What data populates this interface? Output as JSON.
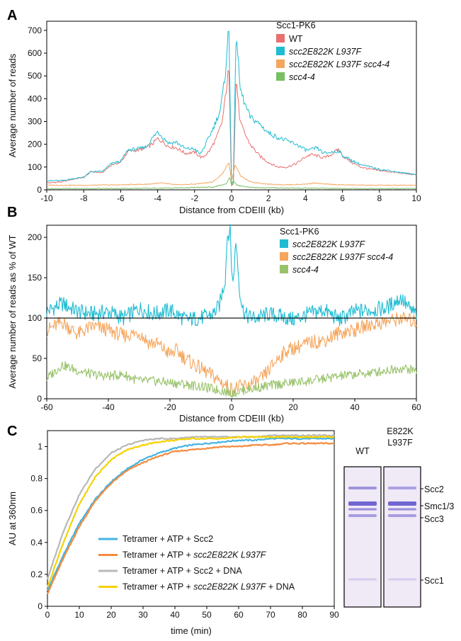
{
  "panels": {
    "a": "A",
    "b": "B",
    "c": "C"
  },
  "chart_data": [
    {
      "type": "line",
      "panel": "A",
      "xlabel": "Distance from CDEIII (kb)",
      "ylabel": "Average number of reads",
      "xlim": [
        -10,
        10
      ],
      "ylim": [
        0,
        740
      ],
      "xticks": [
        "-10",
        "-8",
        "-6",
        "-4",
        "-2",
        "0",
        "2",
        "4",
        "6",
        "8",
        "10"
      ],
      "yticks": [
        "0",
        "100",
        "200",
        "300",
        "400",
        "500",
        "600",
        "700"
      ],
      "legend_title": "Scc1-PK6",
      "legend": [
        "WT",
        "scc2E822K L937F",
        "scc2E822K L937F scc4-4",
        "scc4-4"
      ],
      "series": [
        {
          "name": "WT",
          "color": "#e8706e",
          "x": [
            -10,
            -9.2,
            -8.5,
            -8,
            -7.6,
            -7,
            -6.5,
            -6,
            -5.6,
            -5,
            -4.6,
            -4.3,
            -4,
            -3.7,
            -3.4,
            -3,
            -2.5,
            -2,
            -1.6,
            -1.2,
            -0.8,
            -0.5,
            -0.3,
            -0.15,
            0,
            0.1,
            0.25,
            0.45,
            0.7,
            1,
            1.5,
            2,
            2.5,
            3,
            3.5,
            4,
            4.3,
            4.6,
            5,
            5.4,
            5.8,
            6,
            6.5,
            7,
            7.5,
            8,
            8.5,
            9,
            9.5,
            10
          ],
          "y": [
            30,
            35,
            48,
            55,
            80,
            75,
            110,
            120,
            170,
            175,
            185,
            200,
            225,
            210,
            190,
            185,
            160,
            165,
            140,
            170,
            230,
            300,
            430,
            535,
            20,
            30,
            500,
            300,
            250,
            200,
            150,
            120,
            100,
            100,
            115,
            145,
            155,
            150,
            140,
            155,
            180,
            150,
            120,
            100,
            90,
            85,
            80,
            75,
            70,
            65
          ]
        },
        {
          "name": "scc2E822K L937F",
          "color": "#1fbcd2",
          "x": [
            -10,
            -9.2,
            -8.5,
            -8,
            -7.6,
            -7,
            -6.5,
            -6,
            -5.6,
            -5,
            -4.6,
            -4.3,
            -4,
            -3.7,
            -3.4,
            -3,
            -2.5,
            -2,
            -1.7,
            -1.4,
            -1,
            -0.6,
            -0.35,
            -0.15,
            0,
            0.1,
            0.25,
            0.45,
            0.7,
            1,
            1.5,
            2,
            2.5,
            3,
            3.5,
            4,
            4.3,
            4.6,
            5,
            5.4,
            5.8,
            6,
            6.5,
            7,
            7.5,
            8,
            8.5,
            9,
            9.5,
            10
          ],
          "y": [
            40,
            40,
            50,
            55,
            80,
            80,
            115,
            125,
            175,
            180,
            190,
            225,
            255,
            230,
            205,
            210,
            180,
            180,
            155,
            200,
            270,
            350,
            500,
            720,
            25,
            40,
            715,
            450,
            380,
            320,
            290,
            250,
            230,
            215,
            200,
            175,
            175,
            185,
            160,
            165,
            170,
            150,
            130,
            110,
            100,
            90,
            85,
            78,
            72,
            68
          ]
        },
        {
          "name": "scc2E822K L937F scc4-4",
          "color": "#f5a55c",
          "x": [
            -10,
            -8,
            -6,
            -4.5,
            -3.8,
            -3,
            -2,
            -1,
            -0.5,
            -0.15,
            0,
            0.2,
            0.5,
            1,
            2,
            3,
            4,
            4.5,
            5,
            6,
            8,
            10
          ],
          "y": [
            20,
            20,
            22,
            25,
            30,
            22,
            25,
            35,
            70,
            120,
            40,
            110,
            60,
            35,
            25,
            22,
            25,
            30,
            25,
            22,
            20,
            20
          ]
        },
        {
          "name": "scc4-4",
          "color": "#78c063",
          "x": [
            -10,
            -6,
            -3,
            -1,
            -0.3,
            -0.1,
            0,
            0.1,
            0.3,
            1,
            3,
            6,
            10
          ],
          "y": [
            5,
            6,
            8,
            12,
            25,
            55,
            20,
            40,
            20,
            10,
            8,
            6,
            5
          ]
        }
      ]
    },
    {
      "type": "line",
      "panel": "B",
      "xlabel": "Distance from CDEIII (kb)",
      "ylabel": "Average number of reads as % of WT",
      "xlim": [
        -60,
        60
      ],
      "ylim": [
        0,
        215
      ],
      "xticks": [
        "-60",
        "-40",
        "-20",
        "0",
        "20",
        "40",
        "60"
      ],
      "yticks": [
        "0",
        "50",
        "100",
        "150",
        "200"
      ],
      "reference_line": 100,
      "legend_title": "Scc1-PK6",
      "legend": [
        "scc2E822K L937F",
        "scc2E822K L937F scc4-4",
        "scc4-4"
      ],
      "series": [
        {
          "name": "scc2E822K L937F",
          "color": "#1fbcd2",
          "x": [
            -60,
            -55,
            -50,
            -45,
            -40,
            -35,
            -30,
            -25,
            -20,
            -15,
            -10,
            -6,
            -4,
            -2,
            -1.5,
            -0.5,
            0,
            0.5,
            1,
            1.5,
            2.5,
            3.5,
            5,
            8,
            12,
            16,
            20,
            25,
            30,
            35,
            40,
            45,
            50,
            55,
            58,
            60
          ],
          "y": [
            108,
            118,
            108,
            105,
            108,
            100,
            112,
            105,
            110,
            98,
            100,
            105,
            115,
            150,
            200,
            210,
            165,
            140,
            175,
            195,
            140,
            112,
            102,
            100,
            105,
            102,
            98,
            105,
            110,
            98,
            108,
            110,
            112,
            125,
            110,
            105
          ]
        },
        {
          "name": "scc2E822K L937F scc4-4",
          "color": "#f5a55c",
          "x": [
            -60,
            -55,
            -50,
            -45,
            -40,
            -35,
            -30,
            -27,
            -24,
            -20,
            -18,
            -15,
            -12,
            -9,
            -6,
            -3,
            0,
            3,
            6,
            9,
            12,
            15,
            18,
            22,
            26,
            30,
            35,
            40,
            45,
            50,
            55,
            60
          ],
          "y": [
            85,
            95,
            80,
            90,
            85,
            78,
            82,
            70,
            68,
            55,
            60,
            50,
            42,
            35,
            28,
            20,
            12,
            15,
            18,
            22,
            35,
            50,
            60,
            65,
            70,
            72,
            82,
            85,
            92,
            95,
            100,
            95
          ]
        },
        {
          "name": "scc4-4",
          "color": "#98c26a",
          "x": [
            -60,
            -55,
            -50,
            -45,
            -40,
            -35,
            -30,
            -25,
            -20,
            -15,
            -10,
            -6,
            -3,
            0,
            3,
            6,
            10,
            15,
            20,
            25,
            30,
            35,
            40,
            45,
            50,
            55,
            60
          ],
          "y": [
            25,
            42,
            35,
            30,
            28,
            30,
            22,
            22,
            20,
            18,
            15,
            12,
            10,
            7,
            10,
            12,
            15,
            18,
            20,
            22,
            25,
            28,
            30,
            32,
            35,
            38,
            35
          ]
        }
      ]
    },
    {
      "type": "line",
      "panel": "C",
      "xlabel": "time (min)",
      "ylabel": "AU at 360nm",
      "xlim": [
        0,
        90
      ],
      "ylim": [
        0,
        1.1
      ],
      "xticks": [
        "0",
        "10",
        "20",
        "30",
        "40",
        "50",
        "60",
        "70",
        "80",
        "90"
      ],
      "yticks": [
        "0",
        "0.2",
        "0.4",
        "0.6",
        "0.8",
        "1"
      ],
      "legend": [
        {
          "prefix": "Tetramer + ATP + Scc2",
          "italic": "",
          "suffix": ""
        },
        {
          "prefix": "Tetramer + ATP + ",
          "italic": "scc2E822K L937F",
          "suffix": ""
        },
        {
          "prefix": "Tetramer + ATP + Scc2 + DNA",
          "italic": "",
          "suffix": ""
        },
        {
          "prefix": "Tetramer + ATP + ",
          "italic": "scc2E822K L937F",
          "suffix": " + DNA"
        }
      ],
      "series": [
        {
          "name": "Tetramer + ATP + Scc2",
          "color": "#43b3e2",
          "x": [
            0,
            5,
            10,
            15,
            20,
            25,
            30,
            35,
            40,
            45,
            50,
            55,
            60,
            65,
            70,
            75,
            80,
            85,
            90
          ],
          "y": [
            0.1,
            0.32,
            0.52,
            0.67,
            0.78,
            0.86,
            0.92,
            0.96,
            0.99,
            1.01,
            1.02,
            1.03,
            1.04,
            1.04,
            1.05,
            1.05,
            1.05,
            1.05,
            1.05
          ]
        },
        {
          "name": "Tetramer + ATP + scc2E822K L937F",
          "color": "#f58b3f",
          "x": [
            0,
            5,
            10,
            15,
            20,
            25,
            30,
            35,
            40,
            45,
            50,
            55,
            60,
            65,
            70,
            75,
            80,
            85,
            90
          ],
          "y": [
            0.08,
            0.3,
            0.5,
            0.66,
            0.77,
            0.85,
            0.9,
            0.94,
            0.97,
            0.98,
            0.99,
            1.0,
            1.0,
            1.01,
            1.01,
            1.02,
            1.02,
            1.02,
            1.02
          ]
        },
        {
          "name": "Tetramer + ATP + Scc2 + DNA",
          "color": "#b8b8b8",
          "x": [
            0,
            5,
            10,
            15,
            20,
            25,
            30,
            35,
            40,
            45,
            50,
            55,
            60,
            65,
            70,
            75,
            80,
            85,
            90
          ],
          "y": [
            0.17,
            0.47,
            0.7,
            0.86,
            0.96,
            1.01,
            1.04,
            1.05,
            1.05,
            1.06,
            1.06,
            1.06,
            1.06,
            1.06,
            1.07,
            1.07,
            1.07,
            1.07,
            1.07
          ]
        },
        {
          "name": "Tetramer + ATP + scc2E822K L937F + DNA",
          "color": "#f5d200",
          "x": [
            0,
            5,
            10,
            15,
            20,
            25,
            30,
            35,
            40,
            45,
            50,
            55,
            60,
            65,
            70,
            75,
            80,
            85,
            90
          ],
          "y": [
            0.12,
            0.4,
            0.64,
            0.81,
            0.92,
            0.98,
            1.01,
            1.03,
            1.04,
            1.05,
            1.05,
            1.05,
            1.06,
            1.06,
            1.06,
            1.06,
            1.06,
            1.06,
            1.06
          ]
        }
      ]
    }
  ],
  "gel": {
    "lanes": [
      {
        "label": "WT",
        "label2": ""
      },
      {
        "label": "E822K",
        "label2": "L937F"
      }
    ],
    "bands": [
      "Scc2",
      "Smc1/3",
      "Scc3",
      "Scc1"
    ],
    "band_color": "#5b4fc9",
    "background": "#f0e9f6"
  }
}
